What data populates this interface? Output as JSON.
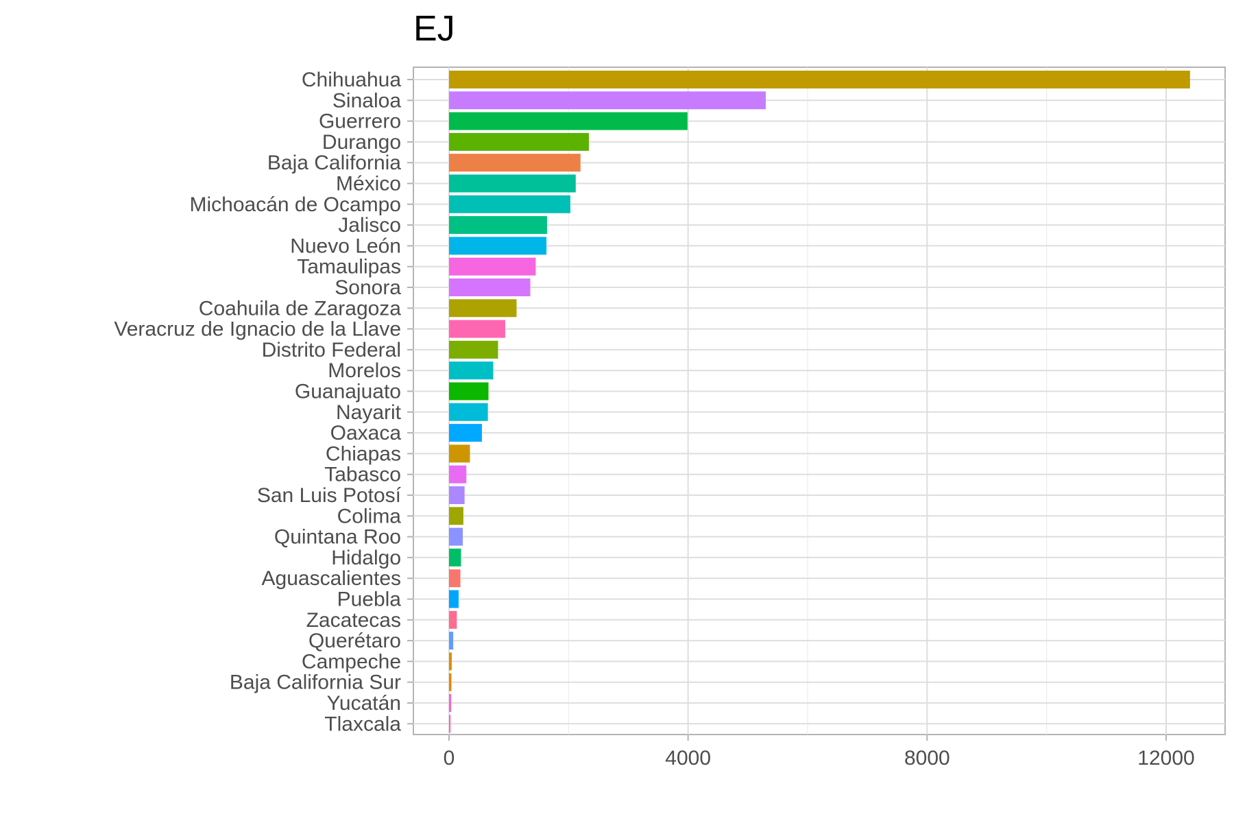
{
  "chart_data": {
    "type": "bar",
    "orientation": "horizontal",
    "title": "EJ",
    "xlabel": "",
    "ylabel": "",
    "xlim": [
      -600,
      13000
    ],
    "x_ticks": [
      0,
      4000,
      8000,
      12000
    ],
    "x_tick_labels": [
      "0",
      "4000",
      "8000",
      "12000"
    ],
    "grid": true,
    "legend": "none",
    "categories": [
      "Chihuahua",
      "Sinaloa",
      "Guerrero",
      "Durango",
      "Baja California",
      "México",
      "Michoacán de Ocampo",
      "Jalisco",
      "Nuevo León",
      "Tamaulipas",
      "Sonora",
      "Coahuila de Zaragoza",
      "Veracruz de Ignacio de la Llave",
      "Distrito Federal",
      "Morelos",
      "Guanajuato",
      "Nayarit",
      "Oaxaca",
      "Chiapas",
      "Tabasco",
      "San Luis Potosí",
      "Colima",
      "Quintana Roo",
      "Hidalgo",
      "Aguascalientes",
      "Puebla",
      "Zacatecas",
      "Querétaro",
      "Campeche",
      "Baja California Sur",
      "Yucatán",
      "Tlaxcala"
    ],
    "values": [
      12400,
      5300,
      3990,
      2340,
      2200,
      2120,
      2030,
      1640,
      1630,
      1450,
      1360,
      1130,
      940,
      820,
      740,
      660,
      650,
      550,
      350,
      290,
      260,
      240,
      230,
      200,
      190,
      160,
      130,
      70,
      45,
      40,
      35,
      25
    ],
    "colors": [
      "#BF9B00",
      "#C77CFF",
      "#00BA4C",
      "#5BB300",
      "#ED8046",
      "#00C09A",
      "#00C0B5",
      "#00C084",
      "#00B5E8",
      "#F566E0",
      "#D575FE",
      "#AEA200",
      "#FF66B2",
      "#7CAE00",
      "#00BFC4",
      "#0CB702",
      "#00BCD8",
      "#00A9FF",
      "#CD9600",
      "#E76BF3",
      "#AC88FF",
      "#9DA700",
      "#8B93FF",
      "#00BE67",
      "#F8766D",
      "#00A5FF",
      "#FF6C91",
      "#619CFF",
      "#DE8C00",
      "#E18A00",
      "#FD61D1",
      "#FF62BC"
    ]
  }
}
